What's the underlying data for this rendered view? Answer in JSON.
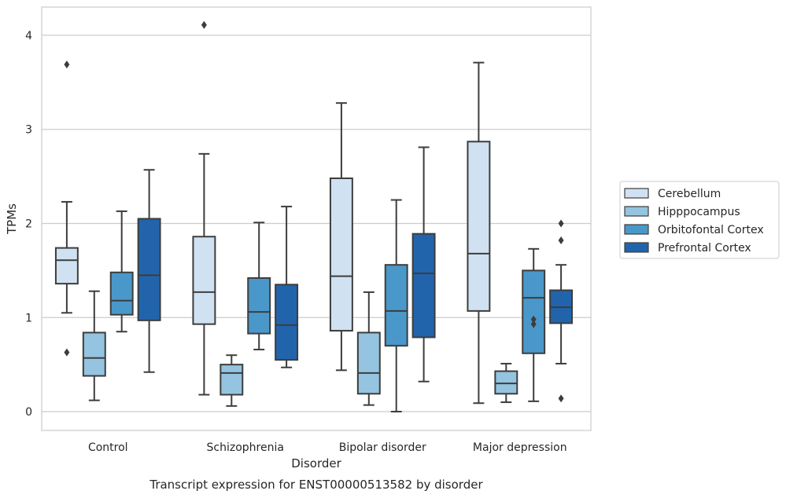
{
  "chart_data": {
    "type": "boxplot",
    "title": "Transcript expression for ENST00000513582 by disorder",
    "xlabel": "Disorder",
    "ylabel": "TPMs",
    "ylim": [
      -0.2,
      4.3
    ],
    "yticks": [
      0,
      1,
      2,
      3,
      4
    ],
    "grid": "horizontal",
    "legend_position": "right",
    "categories": [
      "Control",
      "Schizophrenia",
      "Bipolar disorder",
      "Major depression"
    ],
    "series": [
      {
        "name": "Cerebellum",
        "color": "#d0e1f2",
        "boxes": [
          {
            "whisker_low": 1.05,
            "q1": 1.36,
            "median": 1.61,
            "q3": 1.74,
            "whisker_high": 2.23,
            "outliers": [
              0.63,
              3.69
            ]
          },
          {
            "whisker_low": 0.18,
            "q1": 0.93,
            "median": 1.27,
            "q3": 1.86,
            "whisker_high": 2.74,
            "outliers": [
              4.11
            ]
          },
          {
            "whisker_low": 0.44,
            "q1": 0.86,
            "median": 1.44,
            "q3": 2.48,
            "whisker_high": 3.28,
            "outliers": []
          },
          {
            "whisker_low": 0.09,
            "q1": 1.07,
            "median": 1.68,
            "q3": 2.87,
            "whisker_high": 3.71,
            "outliers": []
          }
        ]
      },
      {
        "name": "Hipppocampus",
        "color": "#94c4df",
        "boxes": [
          {
            "whisker_low": 0.12,
            "q1": 0.38,
            "median": 0.57,
            "q3": 0.84,
            "whisker_high": 1.28,
            "outliers": []
          },
          {
            "whisker_low": 0.06,
            "q1": 0.18,
            "median": 0.41,
            "q3": 0.5,
            "whisker_high": 0.6,
            "outliers": []
          },
          {
            "whisker_low": 0.07,
            "q1": 0.19,
            "median": 0.41,
            "q3": 0.84,
            "whisker_high": 1.27,
            "outliers": []
          },
          {
            "whisker_low": 0.1,
            "q1": 0.19,
            "median": 0.3,
            "q3": 0.43,
            "whisker_high": 0.51,
            "outliers": []
          }
        ]
      },
      {
        "name": "Orbitofontal Cortex",
        "color": "#4a98c9",
        "boxes": [
          {
            "whisker_low": 0.85,
            "q1": 1.03,
            "median": 1.18,
            "q3": 1.48,
            "whisker_high": 2.13,
            "outliers": []
          },
          {
            "whisker_low": 0.66,
            "q1": 0.83,
            "median": 1.06,
            "q3": 1.42,
            "whisker_high": 2.01,
            "outliers": []
          },
          {
            "whisker_low": 0.0,
            "q1": 0.7,
            "median": 1.07,
            "q3": 1.56,
            "whisker_high": 2.25,
            "outliers": []
          },
          {
            "whisker_low": 0.11,
            "q1": 0.62,
            "median": 1.21,
            "q3": 1.5,
            "whisker_high": 1.73,
            "outliers": [
              0.93,
              0.98
            ]
          }
        ]
      },
      {
        "name": "Prefrontal Cortex",
        "color": "#2264ab",
        "boxes": [
          {
            "whisker_low": 0.42,
            "q1": 0.97,
            "median": 1.45,
            "q3": 2.05,
            "whisker_high": 2.57,
            "outliers": []
          },
          {
            "whisker_low": 0.47,
            "q1": 0.55,
            "median": 0.92,
            "q3": 1.35,
            "whisker_high": 2.18,
            "outliers": []
          },
          {
            "whisker_low": 0.32,
            "q1": 0.79,
            "median": 1.47,
            "q3": 1.89,
            "whisker_high": 2.81,
            "outliers": []
          },
          {
            "whisker_low": 0.51,
            "q1": 0.94,
            "median": 1.11,
            "q3": 1.29,
            "whisker_high": 1.56,
            "outliers": [
              0.14,
              1.82,
              2.0
            ]
          }
        ]
      }
    ]
  }
}
